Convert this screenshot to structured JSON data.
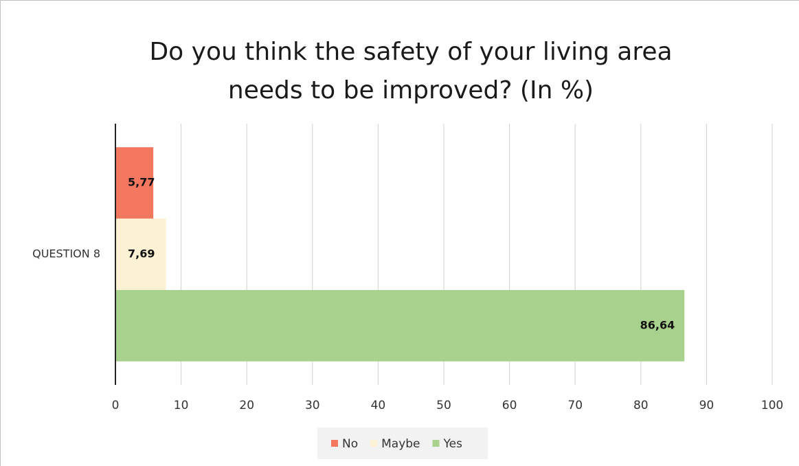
{
  "chart_data": {
    "type": "bar",
    "orientation": "horizontal",
    "title": "Do you think the safety of your living area needs to be improved? (In %)",
    "categories": [
      "QUESTION 8"
    ],
    "series": [
      {
        "name": "No",
        "color": "#f4775f",
        "values": [
          5.77
        ],
        "value_labels": [
          "5,77"
        ]
      },
      {
        "name": "Maybe",
        "color": "#fdf1d4",
        "values": [
          7.69
        ],
        "value_labels": [
          "7,69"
        ]
      },
      {
        "name": "Yes",
        "color": "#a9d18e",
        "values": [
          86.64
        ],
        "value_labels": [
          "86,64"
        ]
      }
    ],
    "xlim": [
      0,
      100
    ],
    "xticks": [
      0,
      10,
      20,
      30,
      40,
      50,
      60,
      70,
      80,
      90,
      100
    ],
    "grid": true,
    "legend": "bottom"
  }
}
